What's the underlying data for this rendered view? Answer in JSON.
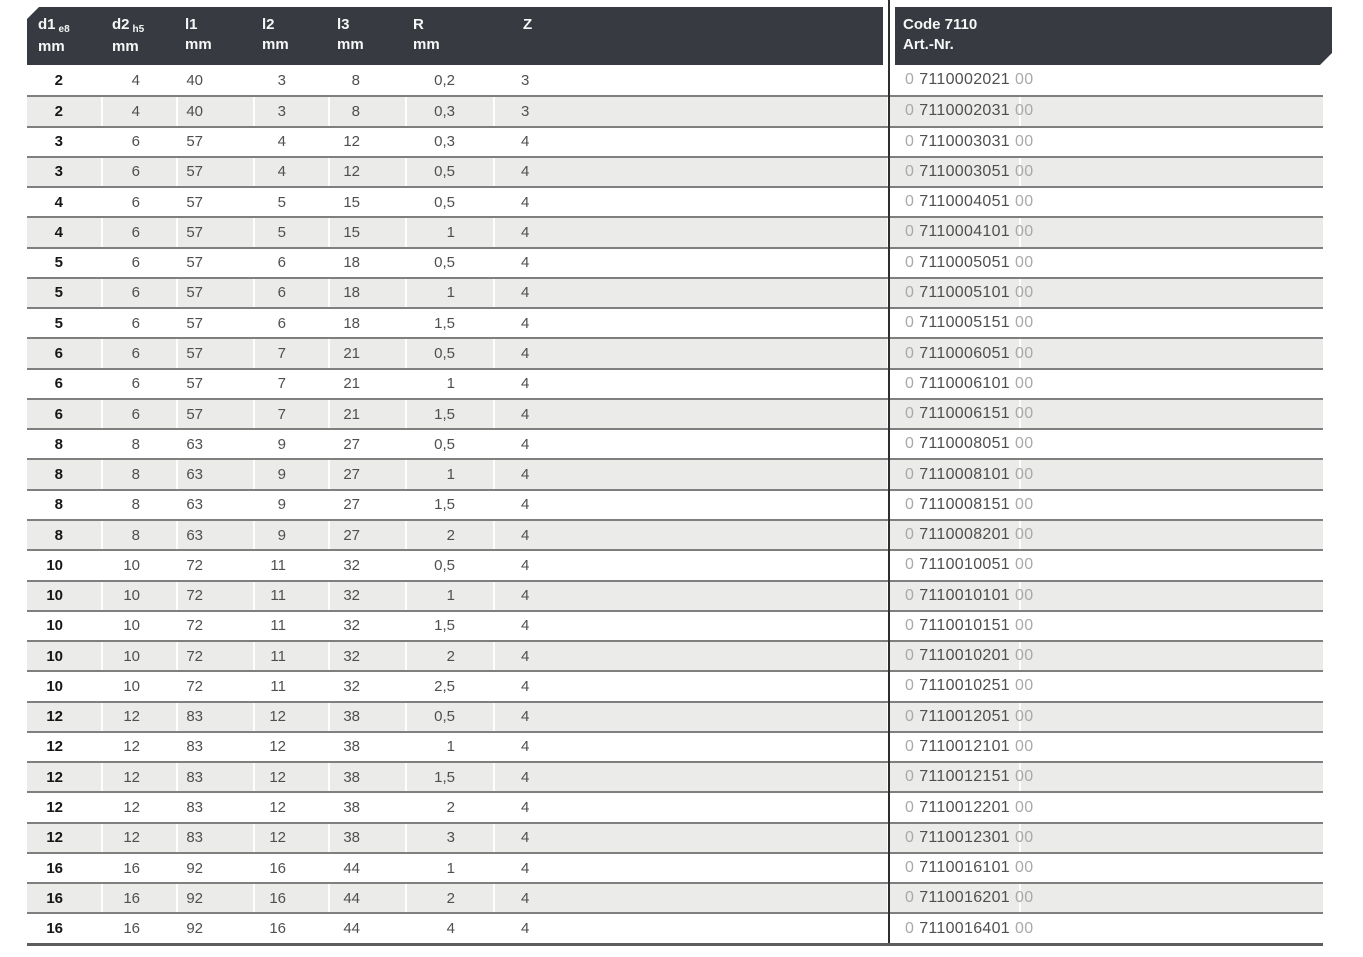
{
  "table": {
    "columns": [
      {
        "id": "d1",
        "label": "d1",
        "sub": "e8",
        "unit": "mm"
      },
      {
        "id": "d2",
        "label": "d2",
        "sub": "h5",
        "unit": "mm"
      },
      {
        "id": "l1",
        "label": "l1",
        "sub": "",
        "unit": "mm"
      },
      {
        "id": "l2",
        "label": "l2",
        "sub": "",
        "unit": "mm"
      },
      {
        "id": "l3",
        "label": "l3",
        "sub": "",
        "unit": "mm"
      },
      {
        "id": "R",
        "label": "R",
        "sub": "",
        "unit": "mm"
      },
      {
        "id": "Z",
        "label": "Z",
        "sub": "",
        "unit": ""
      }
    ],
    "code_column": {
      "title": "Code 7110",
      "subtitle": "Art.-Nr.",
      "art_prefix": "0",
      "art_suffix": "00"
    },
    "rows": [
      {
        "d1": "2",
        "d2": "4",
        "l1": "40",
        "l2": "3",
        "l3": "8",
        "R": "0,2",
        "Z": "3",
        "art": "7110002021"
      },
      {
        "d1": "2",
        "d2": "4",
        "l1": "40",
        "l2": "3",
        "l3": "8",
        "R": "0,3",
        "Z": "3",
        "art": "7110002031"
      },
      {
        "d1": "3",
        "d2": "6",
        "l1": "57",
        "l2": "4",
        "l3": "12",
        "R": "0,3",
        "Z": "4",
        "art": "7110003031"
      },
      {
        "d1": "3",
        "d2": "6",
        "l1": "57",
        "l2": "4",
        "l3": "12",
        "R": "0,5",
        "Z": "4",
        "art": "7110003051"
      },
      {
        "d1": "4",
        "d2": "6",
        "l1": "57",
        "l2": "5",
        "l3": "15",
        "R": "0,5",
        "Z": "4",
        "art": "7110004051"
      },
      {
        "d1": "4",
        "d2": "6",
        "l1": "57",
        "l2": "5",
        "l3": "15",
        "R": "1",
        "Z": "4",
        "art": "7110004101"
      },
      {
        "d1": "5",
        "d2": "6",
        "l1": "57",
        "l2": "6",
        "l3": "18",
        "R": "0,5",
        "Z": "4",
        "art": "7110005051"
      },
      {
        "d1": "5",
        "d2": "6",
        "l1": "57",
        "l2": "6",
        "l3": "18",
        "R": "1",
        "Z": "4",
        "art": "7110005101"
      },
      {
        "d1": "5",
        "d2": "6",
        "l1": "57",
        "l2": "6",
        "l3": "18",
        "R": "1,5",
        "Z": "4",
        "art": "7110005151"
      },
      {
        "d1": "6",
        "d2": "6",
        "l1": "57",
        "l2": "7",
        "l3": "21",
        "R": "0,5",
        "Z": "4",
        "art": "7110006051"
      },
      {
        "d1": "6",
        "d2": "6",
        "l1": "57",
        "l2": "7",
        "l3": "21",
        "R": "1",
        "Z": "4",
        "art": "7110006101"
      },
      {
        "d1": "6",
        "d2": "6",
        "l1": "57",
        "l2": "7",
        "l3": "21",
        "R": "1,5",
        "Z": "4",
        "art": "7110006151"
      },
      {
        "d1": "8",
        "d2": "8",
        "l1": "63",
        "l2": "9",
        "l3": "27",
        "R": "0,5",
        "Z": "4",
        "art": "7110008051"
      },
      {
        "d1": "8",
        "d2": "8",
        "l1": "63",
        "l2": "9",
        "l3": "27",
        "R": "1",
        "Z": "4",
        "art": "7110008101"
      },
      {
        "d1": "8",
        "d2": "8",
        "l1": "63",
        "l2": "9",
        "l3": "27",
        "R": "1,5",
        "Z": "4",
        "art": "7110008151"
      },
      {
        "d1": "8",
        "d2": "8",
        "l1": "63",
        "l2": "9",
        "l3": "27",
        "R": "2",
        "Z": "4",
        "art": "7110008201"
      },
      {
        "d1": "10",
        "d2": "10",
        "l1": "72",
        "l2": "11",
        "l3": "32",
        "R": "0,5",
        "Z": "4",
        "art": "7110010051"
      },
      {
        "d1": "10",
        "d2": "10",
        "l1": "72",
        "l2": "11",
        "l3": "32",
        "R": "1",
        "Z": "4",
        "art": "7110010101"
      },
      {
        "d1": "10",
        "d2": "10",
        "l1": "72",
        "l2": "11",
        "l3": "32",
        "R": "1,5",
        "Z": "4",
        "art": "7110010151"
      },
      {
        "d1": "10",
        "d2": "10",
        "l1": "72",
        "l2": "11",
        "l3": "32",
        "R": "2",
        "Z": "4",
        "art": "7110010201"
      },
      {
        "d1": "10",
        "d2": "10",
        "l1": "72",
        "l2": "11",
        "l3": "32",
        "R": "2,5",
        "Z": "4",
        "art": "7110010251"
      },
      {
        "d1": "12",
        "d2": "12",
        "l1": "83",
        "l2": "12",
        "l3": "38",
        "R": "0,5",
        "Z": "4",
        "art": "7110012051"
      },
      {
        "d1": "12",
        "d2": "12",
        "l1": "83",
        "l2": "12",
        "l3": "38",
        "R": "1",
        "Z": "4",
        "art": "7110012101"
      },
      {
        "d1": "12",
        "d2": "12",
        "l1": "83",
        "l2": "12",
        "l3": "38",
        "R": "1,5",
        "Z": "4",
        "art": "7110012151"
      },
      {
        "d1": "12",
        "d2": "12",
        "l1": "83",
        "l2": "12",
        "l3": "38",
        "R": "2",
        "Z": "4",
        "art": "7110012201"
      },
      {
        "d1": "12",
        "d2": "12",
        "l1": "83",
        "l2": "12",
        "l3": "38",
        "R": "3",
        "Z": "4",
        "art": "7110012301"
      },
      {
        "d1": "16",
        "d2": "16",
        "l1": "92",
        "l2": "16",
        "l3": "44",
        "R": "1",
        "Z": "4",
        "art": "7110016101"
      },
      {
        "d1": "16",
        "d2": "16",
        "l1": "92",
        "l2": "16",
        "l3": "44",
        "R": "2",
        "Z": "4",
        "art": "7110016201"
      },
      {
        "d1": "16",
        "d2": "16",
        "l1": "92",
        "l2": "16",
        "l3": "44",
        "R": "4",
        "Z": "4",
        "art": "7110016401"
      }
    ],
    "colors": {
      "header_bg": "#373b41",
      "row_alt_bg": "#ebebe9",
      "divider": "#2e2e2e",
      "value_text": "#4f4f4f",
      "art_light": "#a9a9a9"
    }
  }
}
